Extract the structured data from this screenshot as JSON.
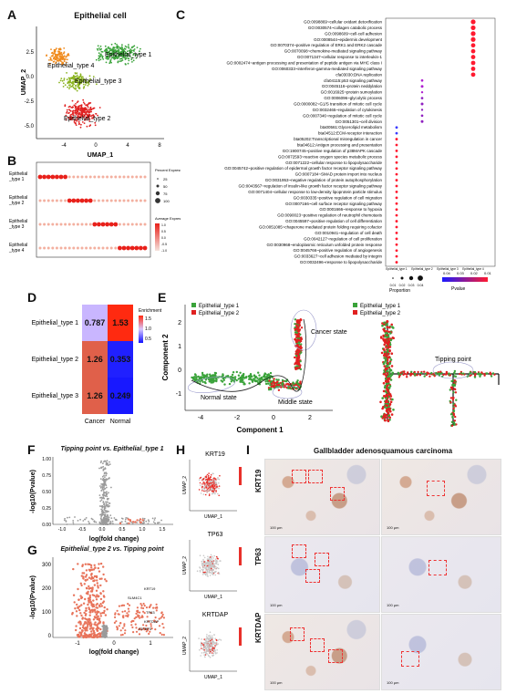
{
  "panels": {
    "A": "A",
    "B": "B",
    "C": "C",
    "D": "D",
    "E": "E",
    "F": "F",
    "G": "G",
    "H": "H",
    "I": "I"
  },
  "panelA": {
    "title": "Epithelial cell",
    "xlabel": "UMAP_1",
    "ylabel": "UMAP_2",
    "xticks": [
      "-4",
      "0",
      "4",
      "8"
    ],
    "yticks": [
      "2.5",
      "0.0",
      "-2.5",
      "-5.0"
    ],
    "clusters": [
      "Epithelial_type 1",
      "Epithelial_type 4",
      "Epithelial_type 3",
      "Epithelial_type 2"
    ],
    "colors": {
      "type1": "#3aa33a",
      "type2": "#e02020",
      "type3": "#8ab31f",
      "type4": "#f08a1c"
    }
  },
  "panelB": {
    "rows": [
      "Epithelial _type 1",
      "Epithelial _type 2",
      "Epithelial _type 3",
      "Epithelial _type 4"
    ],
    "legend_pct_title": "Percent Expressed",
    "legend_pct": [
      "25",
      "50",
      "75",
      "100"
    ],
    "legend_avg_title": "Average Expression",
    "legend_avg": [
      "1.0",
      "0.5",
      "0.0",
      "-0.5",
      "-1.0"
    ]
  },
  "panelC": {
    "terms": [
      "GO:0098869~cellular oxidant detoxification",
      "GO:0030574~collagen catabolic process",
      "GO:0098609~cell-cell adhesion",
      "GO:0008544~epidermis development",
      "GO:0070374~positive regulation of ERK1 and ERK2 cascade",
      "GO:0070098~chemokine-mediated signaling pathway",
      "GO:0071347~cellular response to interleukin-1",
      "GO:0002474~antigen processing and presentation of peptide antigen via MHC class I",
      "GO:0060333~interferon-gamma-mediated signaling pathway",
      "cfa03030:DNA replication",
      "cfa04115:p53 signaling pathway",
      "GO:0045116~protein neddylation",
      "GO:0016925~protein sumoylation",
      "GO:0006096~glycolytic process",
      "GO:0000082~G1/S transition of mitotic cell cycle",
      "GO:0032465~regulation of cytokinesis",
      "GO:0007346~regulation of mitotic cell cycle",
      "GO:0051301~cell division",
      "bta00561:Glycerolipid metabolism",
      "bta04512:ECM-receptor interaction",
      "bta05202:Transcriptional misregulation in cancer",
      "bta04612:Antigen processing and presentation",
      "GO:1900745~positive regulation of p38MAPK cascade",
      "GO:0072593~reactive oxygen species metabolic process",
      "GO:0071222~cellular response to lipopolysaccharide",
      "GO:0045742~positive regulation of epidermal growth factor receptor signaling pathway",
      "GO:0007184~SMAD protein import into nucleus",
      "GO:0031953~negative regulation of protein autophosphorylation",
      "GO:0043567~regulation of insulin-like growth factor receptor signaling pathway",
      "GO:0071404~cellular response to low-density lipoprotein particle stimulus",
      "GO:0030335~positive regulation of cell migration",
      "GO:0007166~cell surface receptor signaling pathway",
      "GO:0001666~response to hypoxia",
      "GO:0090023~positive regulation of neutrophil chemotaxis",
      "GO:0045597~positive regulation of cell differentiation",
      "GO:0051085~chaperone mediated protein folding requiring cofactor",
      "GO:0010941~regulation of cell death",
      "GO:0042127~regulation of cell proliferation",
      "GO:0030968~endoplasmic reticulum unfolded protein response",
      "GO:0045766~positive regulation of angiogenesis",
      "GO:0033627~cell adhesion mediated by integrin",
      "GO:0032496~response to lipopolysaccharide"
    ],
    "columns": [
      "Epithelial_type 1",
      "Epithelial_type 2",
      "Epithelial_type 3",
      "Epithelial_type 4"
    ],
    "proportion_title": "Proportion",
    "proportion_ticks": [
      "0.01",
      "0.02",
      "0.03",
      "0.04"
    ],
    "pvalue_title": "Pvalue",
    "pvalue_ticks": [
      "0.04",
      "0.03",
      "0.02",
      "0.01"
    ]
  },
  "panelD": {
    "rows": [
      "Epithelial_type 1",
      "Epithelial_type 2",
      "Epithelial_type 3"
    ],
    "cols": [
      "Cancer",
      "Normal"
    ],
    "cells": [
      [
        "0.787",
        "1.53"
      ],
      [
        "1.26",
        "0.353"
      ],
      [
        "1.26",
        "0.249"
      ]
    ],
    "legend_title": "Enrichment",
    "legend_ticks": [
      "1.5",
      "1.0",
      "0.5"
    ]
  },
  "panelE": {
    "legend": [
      "Epithelial_type 1",
      "Epithelial_type 2"
    ],
    "xlabel": "Component 1",
    "ylabel": "Component 2",
    "xticks": [
      "-4",
      "-2",
      "0",
      "2"
    ],
    "yticks": [
      "2",
      "1",
      "0",
      "-1"
    ],
    "annotations": [
      "Cancer state",
      "Normal state",
      "Middle state"
    ],
    "tree_label": "Tipping point"
  },
  "panelF": {
    "title": "Tipping point vs. Epithelial_type 1",
    "xlabel": "log(fold change)",
    "ylabel": "-log10(Pvalue)",
    "xticks": [
      "-1.0",
      "-0.5",
      "0.0",
      "0.5",
      "1.0",
      "1.5"
    ],
    "yticks": [
      "1.00",
      "0.75",
      "0.50",
      "0.25",
      "0.00"
    ]
  },
  "panelG": {
    "title": "Epithelial_type 2 vs. Tipping point",
    "xlabel": "log(fold change)",
    "ylabel": "-log10(Pvalue)",
    "xticks": [
      "-1",
      "0",
      "1"
    ],
    "yticks": [
      "300",
      "200",
      "100",
      "0"
    ],
    "genes": [
      "KRT19",
      "SLM4C1",
      "TP63",
      "KRTDAP",
      "IGFBP3"
    ]
  },
  "panelH": {
    "genes": [
      "KRT19",
      "TP63",
      "KRTDAP"
    ],
    "xlabel": "UMAP_1",
    "ylabel": "UMAP_2"
  },
  "panelI": {
    "title": "Gallbladder adenosquamous carcinoma",
    "rows": [
      "KRT19",
      "TP63",
      "KRTDAP"
    ],
    "scale": "100 μm"
  },
  "colors": {
    "green": "#3aa33a",
    "red": "#e02020",
    "orange": "#f08a1c",
    "lime": "#8ab31f",
    "heatBlue": "#1a1aff",
    "heatRed": "#ff3a1a",
    "grey": "#9a9a9a",
    "salmon": "#e8735a"
  }
}
